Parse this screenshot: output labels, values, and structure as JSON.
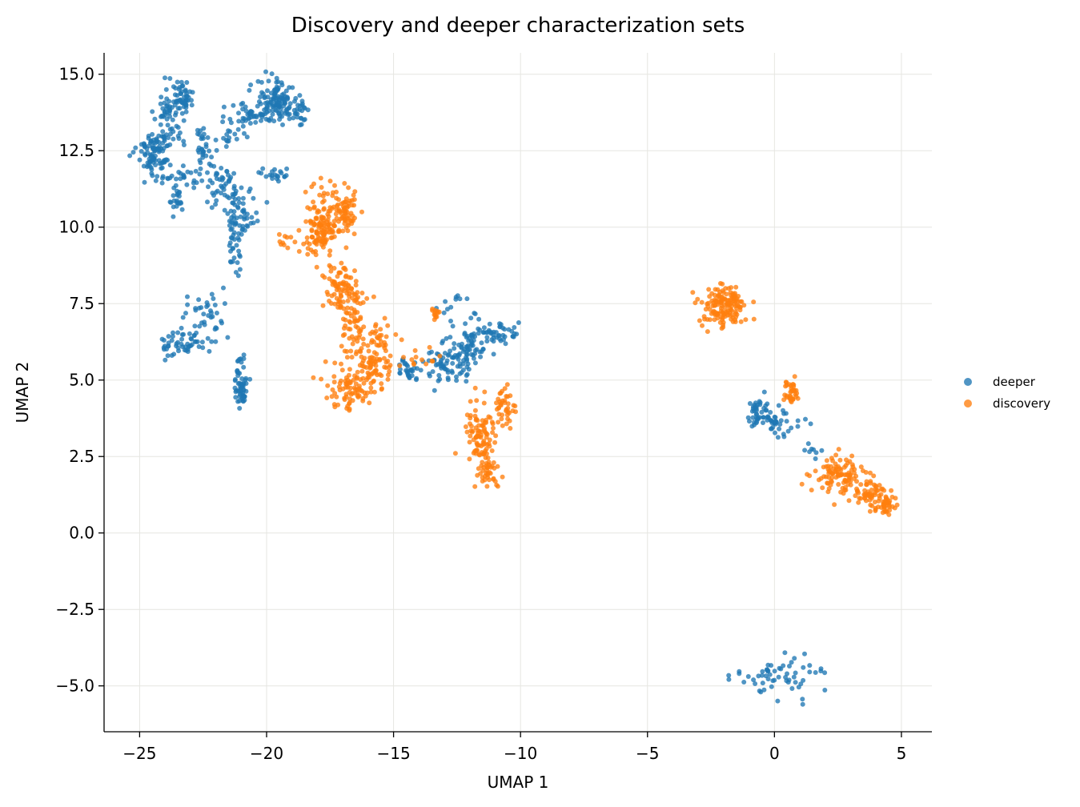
{
  "chart_data": {
    "type": "scatter",
    "title": "Discovery and deeper characterization sets",
    "xlabel": "UMAP 1",
    "ylabel": "UMAP 2",
    "xlim": [
      -26.4,
      6.2
    ],
    "ylim": [
      -6.5,
      15.7
    ],
    "xticks": [
      -25,
      -20,
      -15,
      -10,
      -5,
      0,
      5
    ],
    "yticks": [
      -5.0,
      -2.5,
      0.0,
      2.5,
      5.0,
      7.5,
      10.0,
      12.5,
      15.0
    ],
    "xtick_labels": [
      "−25",
      "−20",
      "−15",
      "−10",
      "−5",
      "0",
      "5"
    ],
    "ytick_labels": [
      "−5.0",
      "−2.5",
      "0.0",
      "2.5",
      "5.0",
      "7.5",
      "10.0",
      "12.5",
      "15.0"
    ],
    "grid": true,
    "legend_position": "right",
    "series": [
      {
        "name": "deeper",
        "color": "#1f77b4",
        "clusters": [
          {
            "x": -23.4,
            "y": 14.3,
            "sx": 0.25,
            "sy": 0.3,
            "n": 50
          },
          {
            "x": -23.8,
            "y": 13.6,
            "sx": 0.3,
            "sy": 0.5,
            "n": 50
          },
          {
            "x": -24.4,
            "y": 12.5,
            "sx": 0.35,
            "sy": 0.4,
            "n": 100
          },
          {
            "x": -23.2,
            "y": 11.6,
            "sx": 0.6,
            "sy": 0.15,
            "n": 30
          },
          {
            "x": -23.5,
            "y": 10.8,
            "sx": 0.12,
            "sy": 0.2,
            "n": 20
          },
          {
            "x": -22.5,
            "y": 12.7,
            "sx": 0.15,
            "sy": 0.4,
            "n": 30
          },
          {
            "x": -21.4,
            "y": 12.9,
            "sx": 0.25,
            "sy": 0.15,
            "n": 15
          },
          {
            "x": -20.7,
            "y": 13.7,
            "sx": 0.4,
            "sy": 0.3,
            "n": 40
          },
          {
            "x": -19.6,
            "y": 14.1,
            "sx": 0.4,
            "sy": 0.35,
            "n": 120
          },
          {
            "x": -18.7,
            "y": 13.9,
            "sx": 0.2,
            "sy": 0.3,
            "n": 25
          },
          {
            "x": -19.6,
            "y": 11.7,
            "sx": 0.3,
            "sy": 0.12,
            "n": 20
          },
          {
            "x": -21.7,
            "y": 11.3,
            "sx": 0.4,
            "sy": 0.4,
            "n": 50
          },
          {
            "x": -21.0,
            "y": 10.4,
            "sx": 0.35,
            "sy": 0.4,
            "n": 50
          },
          {
            "x": -21.3,
            "y": 9.4,
            "sx": 0.12,
            "sy": 0.5,
            "n": 25
          },
          {
            "x": -22.4,
            "y": 7.0,
            "sx": 0.5,
            "sy": 0.4,
            "n": 40
          },
          {
            "x": -23.3,
            "y": 6.2,
            "sx": 0.45,
            "sy": 0.22,
            "n": 50
          },
          {
            "x": -21.0,
            "y": 4.9,
            "sx": 0.12,
            "sy": 0.45,
            "n": 60
          },
          {
            "x": -14.4,
            "y": 5.4,
            "sx": 0.25,
            "sy": 0.2,
            "n": 30
          },
          {
            "x": -13.0,
            "y": 5.5,
            "sx": 0.4,
            "sy": 0.3,
            "n": 50
          },
          {
            "x": -12.1,
            "y": 5.9,
            "sx": 0.4,
            "sy": 0.4,
            "n": 70
          },
          {
            "x": -11.0,
            "y": 6.5,
            "sx": 0.5,
            "sy": 0.2,
            "n": 50
          },
          {
            "x": -12.8,
            "y": 7.3,
            "sx": 0.35,
            "sy": 0.2,
            "n": 15
          },
          {
            "x": -0.6,
            "y": 3.9,
            "sx": 0.3,
            "sy": 0.3,
            "n": 50
          },
          {
            "x": 0.0,
            "y": 3.5,
            "sx": 0.15,
            "sy": 0.15,
            "n": 15
          },
          {
            "x": 0.8,
            "y": 3.7,
            "sx": 0.3,
            "sy": 0.25,
            "n": 15
          },
          {
            "x": 1.5,
            "y": 2.7,
            "sx": 0.2,
            "sy": 0.1,
            "n": 8
          },
          {
            "x": 0.2,
            "y": -4.7,
            "sx": 0.9,
            "sy": 0.35,
            "n": 60
          }
        ]
      },
      {
        "name": "discovery",
        "color": "#ff7f0e",
        "clusters": [
          {
            "x": -17.8,
            "y": 10.3,
            "sx": 0.3,
            "sy": 0.5,
            "n": 90
          },
          {
            "x": -16.9,
            "y": 10.5,
            "sx": 0.25,
            "sy": 0.4,
            "n": 70
          },
          {
            "x": -17.9,
            "y": 9.6,
            "sx": 0.25,
            "sy": 0.3,
            "n": 40
          },
          {
            "x": -19.0,
            "y": 9.5,
            "sx": 0.6,
            "sy": 0.2,
            "n": 15
          },
          {
            "x": -17.1,
            "y": 8.0,
            "sx": 0.35,
            "sy": 0.4,
            "n": 80
          },
          {
            "x": -16.5,
            "y": 7.0,
            "sx": 0.3,
            "sy": 0.5,
            "n": 60
          },
          {
            "x": -15.6,
            "y": 6.2,
            "sx": 0.3,
            "sy": 0.3,
            "n": 40
          },
          {
            "x": -16.0,
            "y": 5.3,
            "sx": 0.5,
            "sy": 0.4,
            "n": 80
          },
          {
            "x": -16.8,
            "y": 4.6,
            "sx": 0.5,
            "sy": 0.3,
            "n": 60
          },
          {
            "x": -14.0,
            "y": 5.7,
            "sx": 0.35,
            "sy": 0.2,
            "n": 12
          },
          {
            "x": -13.4,
            "y": 7.2,
            "sx": 0.15,
            "sy": 0.1,
            "n": 12
          },
          {
            "x": -11.6,
            "y": 3.2,
            "sx": 0.3,
            "sy": 0.6,
            "n": 90
          },
          {
            "x": -11.3,
            "y": 2.0,
            "sx": 0.25,
            "sy": 0.3,
            "n": 40
          },
          {
            "x": -10.6,
            "y": 4.0,
            "sx": 0.2,
            "sy": 0.4,
            "n": 40
          },
          {
            "x": -2.0,
            "y": 7.4,
            "sx": 0.45,
            "sy": 0.35,
            "n": 150
          },
          {
            "x": 0.6,
            "y": 4.6,
            "sx": 0.2,
            "sy": 0.2,
            "n": 35
          },
          {
            "x": 2.6,
            "y": 1.9,
            "sx": 0.5,
            "sy": 0.3,
            "n": 100
          },
          {
            "x": 3.7,
            "y": 1.3,
            "sx": 0.4,
            "sy": 0.2,
            "n": 50
          },
          {
            "x": 4.4,
            "y": 0.9,
            "sx": 0.25,
            "sy": 0.15,
            "n": 40
          }
        ]
      }
    ]
  }
}
